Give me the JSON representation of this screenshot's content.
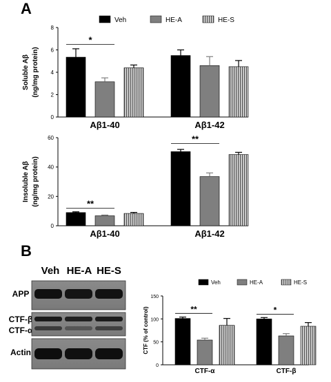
{
  "panel_labels": {
    "a": "A",
    "b": "B"
  },
  "colors": {
    "veh": "#000000",
    "hea": "#7f7f7f",
    "hes_bg": "#d4d4d4",
    "hes_stripe": "#555555",
    "axis": "#000000"
  },
  "blot": {
    "column_labels": [
      "Veh",
      "HE-A",
      "HE-S"
    ],
    "row_labels": {
      "app": "APP",
      "ctf_beta": "CTF-β",
      "ctf_alpha": "CTF-α",
      "actin": "Actin"
    }
  },
  "chart_data": [
    {
      "type": "bar",
      "ylabel": [
        "Soluble Aβ",
        "(ng/mg protein)"
      ],
      "ylim": [
        0,
        8
      ],
      "yticks": [
        0,
        2,
        4,
        6,
        8
      ],
      "categories": [
        "Aβ1-40",
        "Aβ1-42"
      ],
      "legend": "top",
      "series": [
        {
          "name": "Veh",
          "values": [
            5.35,
            5.5
          ],
          "errors": [
            0.75,
            0.5
          ]
        },
        {
          "name": "HE-A",
          "values": [
            3.15,
            4.6
          ],
          "errors": [
            0.35,
            0.8
          ]
        },
        {
          "name": "HE-S",
          "values": [
            4.4,
            4.5
          ],
          "errors": [
            0.25,
            0.55
          ]
        }
      ],
      "significance": [
        {
          "label": "*",
          "category": 0,
          "from": 0,
          "to": 1,
          "y": 6.5
        }
      ]
    },
    {
      "type": "bar",
      "ylabel": [
        "Insoluble Aβ",
        "(ng/mg protein)"
      ],
      "ylim": [
        0,
        60
      ],
      "yticks": [
        0,
        20,
        40,
        60
      ],
      "categories": [
        "Aβ1-40",
        "Aβ1-42"
      ],
      "series": [
        {
          "name": "Veh",
          "values": [
            9,
            50.5
          ],
          "errors": [
            0.5,
            1.5
          ]
        },
        {
          "name": "HE-A",
          "values": [
            6.8,
            33.5
          ],
          "errors": [
            0.5,
            2.5
          ]
        },
        {
          "name": "HE-S",
          "values": [
            8.4,
            48.5
          ],
          "errors": [
            0.7,
            1.5
          ]
        }
      ],
      "significance": [
        {
          "label": "**",
          "category": 0,
          "from": 0,
          "to": 1,
          "y": 12
        },
        {
          "label": "**",
          "category": 1,
          "from": 0,
          "to": 1,
          "y": 56
        }
      ]
    },
    {
      "type": "bar",
      "ylabel": [
        "CTF (% of control)"
      ],
      "ylim": [
        0,
        150
      ],
      "yticks": [
        0,
        50,
        100,
        150
      ],
      "categories": [
        "CTF-α",
        "CTF-β"
      ],
      "legend": "top",
      "series": [
        {
          "name": "Veh",
          "values": [
            101,
            100
          ],
          "errors": [
            3,
            3
          ]
        },
        {
          "name": "HE-A",
          "values": [
            54,
            63
          ],
          "errors": [
            4,
            5
          ]
        },
        {
          "name": "HE-S",
          "values": [
            86,
            84
          ],
          "errors": [
            15,
            8
          ]
        }
      ],
      "significance": [
        {
          "label": "**",
          "category": 0,
          "from": 0,
          "to": 1,
          "y": 112
        },
        {
          "label": "*",
          "category": 1,
          "from": 0,
          "to": 1,
          "y": 110
        }
      ]
    }
  ]
}
